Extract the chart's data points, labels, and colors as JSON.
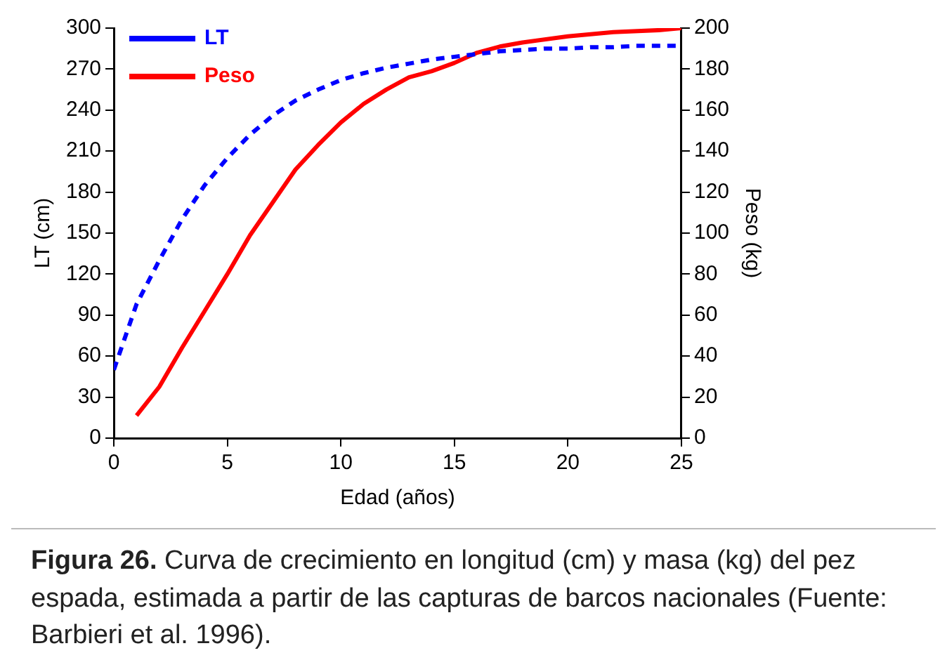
{
  "chart_data": {
    "type": "line",
    "xlabel": "Edad (años)",
    "ylabel": "LT (cm)",
    "y2label": "Peso (kg)",
    "xlim": [
      0,
      25
    ],
    "xticks": [
      0,
      5,
      10,
      15,
      20,
      25
    ],
    "ylim": [
      0,
      300
    ],
    "yticks": [
      0,
      30,
      60,
      90,
      120,
      150,
      180,
      210,
      240,
      270,
      300
    ],
    "y2lim": [
      0,
      200
    ],
    "y2ticks": [
      0,
      20,
      40,
      60,
      80,
      100,
      120,
      140,
      160,
      180,
      200
    ],
    "grid": false,
    "legend": "top left",
    "marker": "none",
    "series": [
      {
        "name": "LT",
        "color": "#0000ff",
        "line_style": "dashed",
        "x": [
          0,
          1,
          2,
          3,
          4,
          5,
          6,
          7,
          8,
          9,
          10,
          11,
          12,
          13,
          14,
          15,
          16,
          17,
          18,
          19,
          20,
          21,
          22,
          23,
          24,
          25
        ],
        "values": [
          50,
          98,
          130,
          160,
          185,
          205,
          222,
          236,
          247,
          255,
          262,
          267,
          271,
          274,
          277,
          279,
          281,
          283,
          284,
          285,
          285,
          286,
          286,
          287,
          287,
          287
        ]
      },
      {
        "name": "Peso",
        "color": "#ff0000",
        "line_style": "solid",
        "axis": "y2",
        "x": [
          1,
          2,
          3,
          4,
          5,
          6,
          7,
          8,
          9,
          10,
          11,
          12,
          13,
          14,
          15,
          16,
          17,
          18,
          20,
          22,
          24,
          25
        ],
        "values": [
          11,
          25,
          44,
          62,
          80,
          99,
          115,
          131,
          143,
          154,
          163,
          170,
          176,
          179,
          183,
          188,
          191,
          193,
          196,
          198,
          199,
          200
        ]
      }
    ],
    "annotations": [
      "Figura 26.",
      "Curva de crecimiento en longitud (cm) y masa (kg) del pez espada, estimada a partir de las capturas de barcos nacionales (Fuente: Barbieri et al. 1996)."
    ]
  }
}
